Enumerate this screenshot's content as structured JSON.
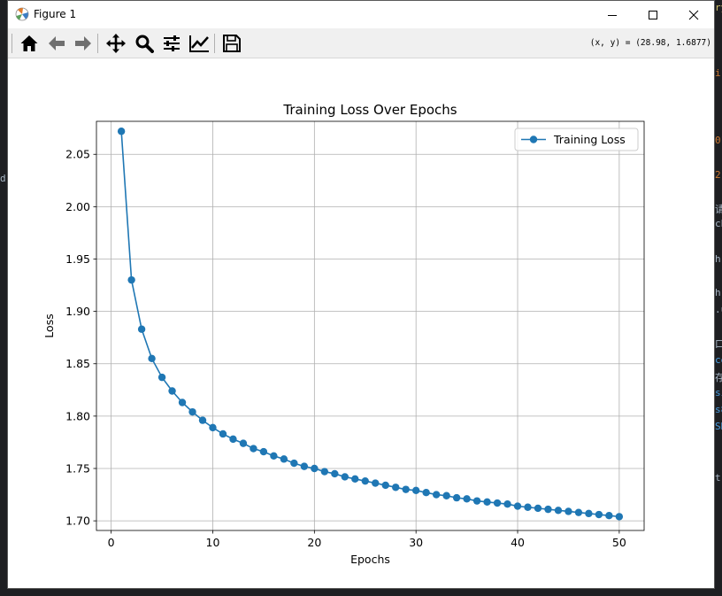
{
  "window": {
    "title": "Figure 1",
    "app_icon": "matplotlib-icon"
  },
  "window_controls": [
    "minimize-icon",
    "maximize-icon",
    "close-icon"
  ],
  "toolbar": {
    "buttons": [
      "home-icon",
      "back-arrow-icon",
      "forward-arrow-icon",
      "pan-icon",
      "zoom-icon",
      "configure-subplots-icon",
      "edit-axis-icon",
      "save-icon"
    ],
    "coordinates": "(x, y) = (28.98, 1.6877)"
  },
  "chart_data": {
    "type": "line",
    "title": "Training Loss Over Epochs",
    "xlabel": "Epochs",
    "ylabel": "Loss",
    "xlim": [
      -1.45,
      52.45
    ],
    "ylim": [
      1.6908,
      2.0815
    ],
    "xticks": [
      0,
      10,
      20,
      30,
      40,
      50
    ],
    "yticks": [
      1.7,
      1.75,
      1.8,
      1.85,
      1.9,
      1.95,
      2.0,
      2.05
    ],
    "grid": true,
    "legend_position": "upper right",
    "series": [
      {
        "name": "Training Loss",
        "color": "#1f77b4",
        "marker": "circle",
        "x": [
          1,
          2,
          3,
          4,
          5,
          6,
          7,
          8,
          9,
          10,
          11,
          12,
          13,
          14,
          15,
          16,
          17,
          18,
          19,
          20,
          21,
          22,
          23,
          24,
          25,
          26,
          27,
          28,
          29,
          30,
          31,
          32,
          33,
          34,
          35,
          36,
          37,
          38,
          39,
          40,
          41,
          42,
          43,
          44,
          45,
          46,
          47,
          48,
          49,
          50
        ],
        "values": [
          2.072,
          1.93,
          1.883,
          1.855,
          1.837,
          1.824,
          1.813,
          1.804,
          1.796,
          1.789,
          1.783,
          1.778,
          1.774,
          1.769,
          1.766,
          1.762,
          1.759,
          1.755,
          1.752,
          1.75,
          1.747,
          1.745,
          1.742,
          1.74,
          1.738,
          1.736,
          1.734,
          1.732,
          1.73,
          1.729,
          1.727,
          1.725,
          1.724,
          1.722,
          1.721,
          1.719,
          1.718,
          1.717,
          1.716,
          1.714,
          1.713,
          1.712,
          1.711,
          1.71,
          1.709,
          1.708,
          1.707,
          1.706,
          1.705,
          1.704
        ]
      }
    ]
  }
}
